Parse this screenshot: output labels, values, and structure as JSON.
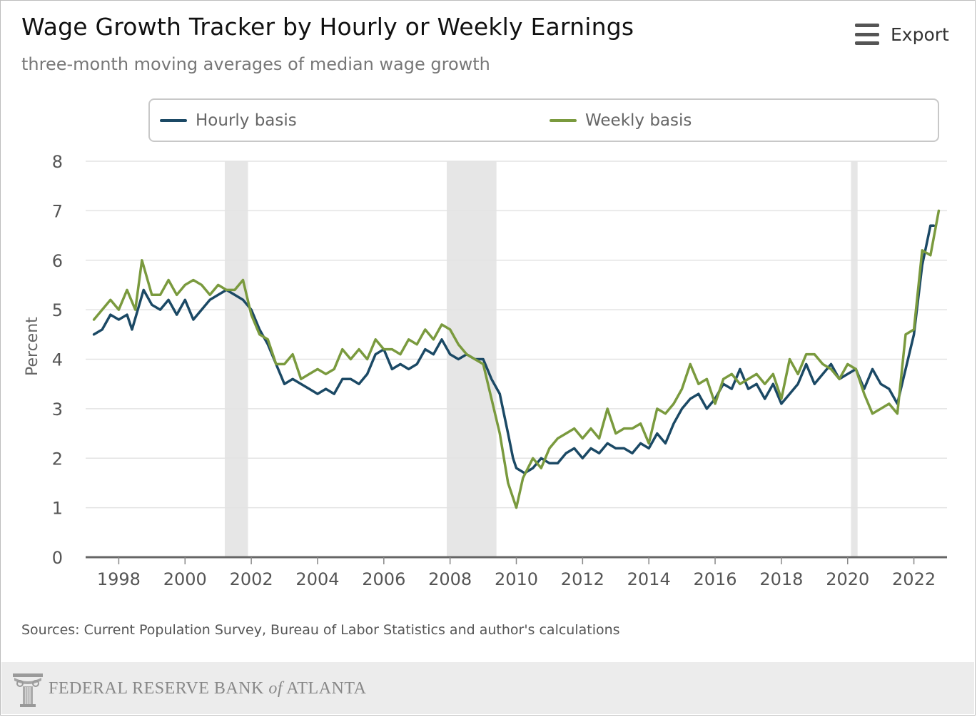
{
  "header": {
    "title": "Wage Growth Tracker by Hourly or Weekly Earnings",
    "subtitle": "three-month moving averages of median wage growth",
    "export_label": "Export",
    "export_icon": "hamburger-menu-icon"
  },
  "legend": {
    "items": [
      {
        "label": "Hourly basis",
        "color": "#1b4965"
      },
      {
        "label": "Weekly basis",
        "color": "#7a9a3e"
      }
    ]
  },
  "sources": "Sources: Current Population Survey, Bureau of Labor Statistics and author's calculations",
  "footer": {
    "org_prefix": "FEDERAL RESERVE BANK ",
    "org_of": "of",
    "org_suffix": " ATLANTA",
    "logo_icon": "federal-reserve-column-logo-icon"
  },
  "chart_data": {
    "type": "line",
    "title": "Wage Growth Tracker by Hourly or Weekly Earnings",
    "subtitle": "three-month moving averages of median wage growth",
    "xlabel": "",
    "ylabel": "Percent",
    "xlim": [
      1997.0,
      2023.0
    ],
    "ylim": [
      0,
      8
    ],
    "x_ticks": [
      "1998",
      "2000",
      "2002",
      "2004",
      "2006",
      "2008",
      "2010",
      "2012",
      "2014",
      "2016",
      "2018",
      "2020",
      "2022"
    ],
    "y_ticks": [
      "0",
      "1",
      "2",
      "3",
      "4",
      "5",
      "6",
      "7",
      "8"
    ],
    "grid": true,
    "legend_position": "top",
    "recessions": [
      [
        2001.2,
        2001.9
      ],
      [
        2007.9,
        2009.4
      ],
      [
        2020.1,
        2020.3
      ]
    ],
    "recession_color": "#e6e6e6",
    "series": [
      {
        "name": "Hourly basis",
        "color": "#1b4965",
        "points": [
          [
            1997.25,
            4.5
          ],
          [
            1997.5,
            4.6
          ],
          [
            1997.75,
            4.9
          ],
          [
            1998.0,
            4.8
          ],
          [
            1998.25,
            4.9
          ],
          [
            1998.4,
            4.6
          ],
          [
            1998.75,
            5.4
          ],
          [
            1999.0,
            5.1
          ],
          [
            1999.25,
            5.0
          ],
          [
            1999.5,
            5.2
          ],
          [
            1999.75,
            4.9
          ],
          [
            2000.0,
            5.2
          ],
          [
            2000.25,
            4.8
          ],
          [
            2000.5,
            5.0
          ],
          [
            2000.75,
            5.2
          ],
          [
            2001.0,
            5.3
          ],
          [
            2001.25,
            5.4
          ],
          [
            2001.5,
            5.3
          ],
          [
            2001.75,
            5.2
          ],
          [
            2002.0,
            5.0
          ],
          [
            2002.25,
            4.6
          ],
          [
            2002.5,
            4.3
          ],
          [
            2002.75,
            3.9
          ],
          [
            2003.0,
            3.5
          ],
          [
            2003.25,
            3.6
          ],
          [
            2003.5,
            3.5
          ],
          [
            2003.75,
            3.4
          ],
          [
            2004.0,
            3.3
          ],
          [
            2004.25,
            3.4
          ],
          [
            2004.5,
            3.3
          ],
          [
            2004.75,
            3.6
          ],
          [
            2005.0,
            3.6
          ],
          [
            2005.25,
            3.5
          ],
          [
            2005.5,
            3.7
          ],
          [
            2005.75,
            4.1
          ],
          [
            2006.0,
            4.2
          ],
          [
            2006.25,
            3.8
          ],
          [
            2006.5,
            3.9
          ],
          [
            2006.75,
            3.8
          ],
          [
            2007.0,
            3.9
          ],
          [
            2007.25,
            4.2
          ],
          [
            2007.5,
            4.1
          ],
          [
            2007.75,
            4.4
          ],
          [
            2008.0,
            4.1
          ],
          [
            2008.25,
            4.0
          ],
          [
            2008.5,
            4.1
          ],
          [
            2008.75,
            4.0
          ],
          [
            2009.0,
            4.0
          ],
          [
            2009.25,
            3.6
          ],
          [
            2009.5,
            3.3
          ],
          [
            2009.75,
            2.5
          ],
          [
            2009.9,
            2.0
          ],
          [
            2010.0,
            1.8
          ],
          [
            2010.25,
            1.7
          ],
          [
            2010.5,
            1.8
          ],
          [
            2010.75,
            2.0
          ],
          [
            2011.0,
            1.9
          ],
          [
            2011.25,
            1.9
          ],
          [
            2011.5,
            2.1
          ],
          [
            2011.75,
            2.2
          ],
          [
            2012.0,
            2.0
          ],
          [
            2012.25,
            2.2
          ],
          [
            2012.5,
            2.1
          ],
          [
            2012.75,
            2.3
          ],
          [
            2013.0,
            2.2
          ],
          [
            2013.25,
            2.2
          ],
          [
            2013.5,
            2.1
          ],
          [
            2013.75,
            2.3
          ],
          [
            2014.0,
            2.2
          ],
          [
            2014.25,
            2.5
          ],
          [
            2014.5,
            2.3
          ],
          [
            2014.75,
            2.7
          ],
          [
            2015.0,
            3.0
          ],
          [
            2015.25,
            3.2
          ],
          [
            2015.5,
            3.3
          ],
          [
            2015.75,
            3.0
          ],
          [
            2016.0,
            3.2
          ],
          [
            2016.25,
            3.5
          ],
          [
            2016.5,
            3.4
          ],
          [
            2016.75,
            3.8
          ],
          [
            2017.0,
            3.4
          ],
          [
            2017.25,
            3.5
          ],
          [
            2017.5,
            3.2
          ],
          [
            2017.75,
            3.5
          ],
          [
            2018.0,
            3.1
          ],
          [
            2018.25,
            3.3
          ],
          [
            2018.5,
            3.5
          ],
          [
            2018.75,
            3.9
          ],
          [
            2019.0,
            3.5
          ],
          [
            2019.25,
            3.7
          ],
          [
            2019.5,
            3.9
          ],
          [
            2019.75,
            3.6
          ],
          [
            2020.0,
            3.7
          ],
          [
            2020.25,
            3.8
          ],
          [
            2020.5,
            3.4
          ],
          [
            2020.75,
            3.8
          ],
          [
            2021.0,
            3.5
          ],
          [
            2021.25,
            3.4
          ],
          [
            2021.5,
            3.1
          ],
          [
            2021.75,
            3.8
          ],
          [
            2022.0,
            4.5
          ],
          [
            2022.25,
            5.9
          ],
          [
            2022.5,
            6.7
          ],
          [
            2022.6,
            6.7
          ]
        ]
      },
      {
        "name": "Weekly basis",
        "color": "#7a9a3e",
        "points": [
          [
            1997.25,
            4.8
          ],
          [
            1997.5,
            5.0
          ],
          [
            1997.75,
            5.2
          ],
          [
            1998.0,
            5.0
          ],
          [
            1998.25,
            5.4
          ],
          [
            1998.5,
            5.0
          ],
          [
            1998.7,
            6.0
          ],
          [
            1999.0,
            5.3
          ],
          [
            1999.25,
            5.3
          ],
          [
            1999.5,
            5.6
          ],
          [
            1999.75,
            5.3
          ],
          [
            2000.0,
            5.5
          ],
          [
            2000.25,
            5.6
          ],
          [
            2000.5,
            5.5
          ],
          [
            2000.75,
            5.3
          ],
          [
            2001.0,
            5.5
          ],
          [
            2001.25,
            5.4
          ],
          [
            2001.5,
            5.4
          ],
          [
            2001.75,
            5.6
          ],
          [
            2002.0,
            4.9
          ],
          [
            2002.25,
            4.5
          ],
          [
            2002.5,
            4.4
          ],
          [
            2002.75,
            3.9
          ],
          [
            2003.0,
            3.9
          ],
          [
            2003.25,
            4.1
          ],
          [
            2003.5,
            3.6
          ],
          [
            2003.75,
            3.7
          ],
          [
            2004.0,
            3.8
          ],
          [
            2004.25,
            3.7
          ],
          [
            2004.5,
            3.8
          ],
          [
            2004.75,
            4.2
          ],
          [
            2005.0,
            4.0
          ],
          [
            2005.25,
            4.2
          ],
          [
            2005.5,
            4.0
          ],
          [
            2005.75,
            4.4
          ],
          [
            2006.0,
            4.2
          ],
          [
            2006.25,
            4.2
          ],
          [
            2006.5,
            4.1
          ],
          [
            2006.75,
            4.4
          ],
          [
            2007.0,
            4.3
          ],
          [
            2007.25,
            4.6
          ],
          [
            2007.5,
            4.4
          ],
          [
            2007.75,
            4.7
          ],
          [
            2008.0,
            4.6
          ],
          [
            2008.25,
            4.3
          ],
          [
            2008.5,
            4.1
          ],
          [
            2008.75,
            4.0
          ],
          [
            2009.0,
            3.9
          ],
          [
            2009.25,
            3.2
          ],
          [
            2009.5,
            2.5
          ],
          [
            2009.75,
            1.5
          ],
          [
            2010.0,
            1.0
          ],
          [
            2010.2,
            1.6
          ],
          [
            2010.5,
            2.0
          ],
          [
            2010.75,
            1.8
          ],
          [
            2011.0,
            2.2
          ],
          [
            2011.25,
            2.4
          ],
          [
            2011.5,
            2.5
          ],
          [
            2011.75,
            2.6
          ],
          [
            2012.0,
            2.4
          ],
          [
            2012.25,
            2.6
          ],
          [
            2012.5,
            2.4
          ],
          [
            2012.75,
            3.0
          ],
          [
            2013.0,
            2.5
          ],
          [
            2013.25,
            2.6
          ],
          [
            2013.5,
            2.6
          ],
          [
            2013.75,
            2.7
          ],
          [
            2014.0,
            2.3
          ],
          [
            2014.25,
            3.0
          ],
          [
            2014.5,
            2.9
          ],
          [
            2014.75,
            3.1
          ],
          [
            2015.0,
            3.4
          ],
          [
            2015.25,
            3.9
          ],
          [
            2015.5,
            3.5
          ],
          [
            2015.75,
            3.6
          ],
          [
            2016.0,
            3.1
          ],
          [
            2016.25,
            3.6
          ],
          [
            2016.5,
            3.7
          ],
          [
            2016.75,
            3.5
          ],
          [
            2017.0,
            3.6
          ],
          [
            2017.25,
            3.7
          ],
          [
            2017.5,
            3.5
          ],
          [
            2017.75,
            3.7
          ],
          [
            2018.0,
            3.2
          ],
          [
            2018.25,
            4.0
          ],
          [
            2018.5,
            3.7
          ],
          [
            2018.75,
            4.1
          ],
          [
            2019.0,
            4.1
          ],
          [
            2019.25,
            3.9
          ],
          [
            2019.5,
            3.8
          ],
          [
            2019.75,
            3.6
          ],
          [
            2020.0,
            3.9
          ],
          [
            2020.25,
            3.8
          ],
          [
            2020.5,
            3.3
          ],
          [
            2020.75,
            2.9
          ],
          [
            2021.0,
            3.0
          ],
          [
            2021.25,
            3.1
          ],
          [
            2021.5,
            2.9
          ],
          [
            2021.75,
            4.5
          ],
          [
            2022.0,
            4.6
          ],
          [
            2022.25,
            6.2
          ],
          [
            2022.5,
            6.1
          ],
          [
            2022.75,
            7.0
          ]
        ]
      }
    ]
  }
}
